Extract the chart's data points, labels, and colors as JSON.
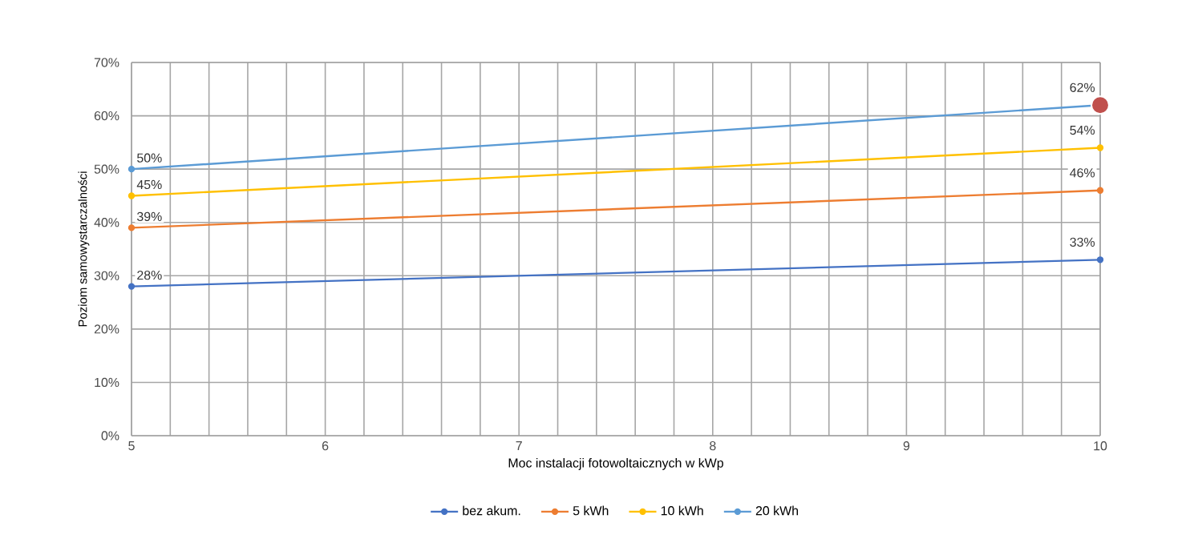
{
  "chart_data": {
    "type": "line",
    "xlabel": "Moc instalacji fotowoltaicznych w kWp",
    "ylabel": "Poziom samowystarczalności",
    "xlim": [
      5,
      10
    ],
    "xticks": [
      5,
      {
        "value": 5.2,
        "label": null
      },
      {
        "value": 5.4,
        "label": null
      },
      {
        "value": 5.6,
        "label": null
      },
      {
        "value": 5.8,
        "label": null
      },
      6,
      {
        "value": 6.2,
        "label": null
      },
      {
        "value": 6.4,
        "label": null
      },
      {
        "value": 6.6,
        "label": null
      },
      {
        "value": 6.8,
        "label": null
      },
      7,
      {
        "value": 7.2,
        "label": null
      },
      {
        "value": 7.4,
        "label": null
      },
      {
        "value": 7.6,
        "label": null
      },
      {
        "value": 7.8,
        "label": null
      },
      8,
      {
        "value": 8.2,
        "label": null
      },
      {
        "value": 8.4,
        "label": null
      },
      {
        "value": 8.6,
        "label": null
      },
      {
        "value": 8.8,
        "label": null
      },
      9,
      {
        "value": 9.2,
        "label": null
      },
      {
        "value": 9.4,
        "label": null
      },
      {
        "value": 9.6,
        "label": null
      },
      {
        "value": 9.8,
        "label": null
      },
      10
    ],
    "ylim": [
      0,
      70
    ],
    "yticks": [
      {
        "value": 0,
        "label": "0%"
      },
      {
        "value": 10,
        "label": "10%"
      },
      {
        "value": 20,
        "label": "20%"
      },
      {
        "value": 30,
        "label": "30%"
      },
      {
        "value": 40,
        "label": "40%"
      },
      {
        "value": 50,
        "label": "50%"
      },
      {
        "value": 60,
        "label": "60%"
      },
      {
        "value": 70,
        "label": "70%"
      }
    ],
    "x": [
      5,
      10
    ],
    "series": [
      {
        "name": "bez akum.",
        "color": "#4472c4",
        "values": [
          28,
          33
        ],
        "value_labels": [
          "28%",
          "33%"
        ]
      },
      {
        "name": "5 kWh",
        "color": "#ed7d31",
        "values": [
          39,
          46
        ],
        "value_labels": [
          "39%",
          "46%"
        ]
      },
      {
        "name": "10 kWh",
        "color": "#ffc000",
        "values": [
          45,
          54
        ],
        "value_labels": [
          "45%",
          "54%"
        ]
      },
      {
        "name": "20 kWh",
        "color": "#5b9bd5",
        "values": [
          50,
          62
        ],
        "value_labels": [
          "50%",
          "62%"
        ]
      },
      {
        "type": "scatter",
        "color": "#c0504d",
        "x": [
          10
        ],
        "values": [
          62
        ]
      }
    ],
    "grid": true,
    "legend": "bottom",
    "marker": "circle",
    "line_style": "solid"
  }
}
